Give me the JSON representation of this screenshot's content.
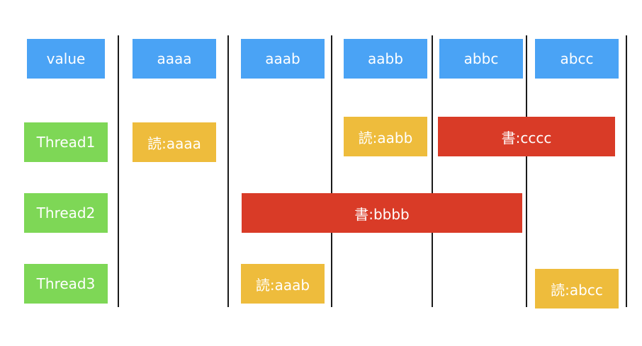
{
  "value_row": {
    "header": "value",
    "states": [
      "aaaa",
      "aaab",
      "aabb",
      "abbc",
      "abcc"
    ]
  },
  "threads": [
    {
      "name": "Thread1",
      "ops": [
        "読:aaaa",
        "読:aabb",
        "書:cccc"
      ]
    },
    {
      "name": "Thread2",
      "ops": [
        "書:bbbb"
      ]
    },
    {
      "name": "Thread3",
      "ops": [
        "読:aaab",
        "読:abcc"
      ]
    }
  ],
  "colors": {
    "value": "#4aa3f5",
    "thread": "#7ed756",
    "read": "#eebc3c",
    "write": "#d93b27"
  }
}
